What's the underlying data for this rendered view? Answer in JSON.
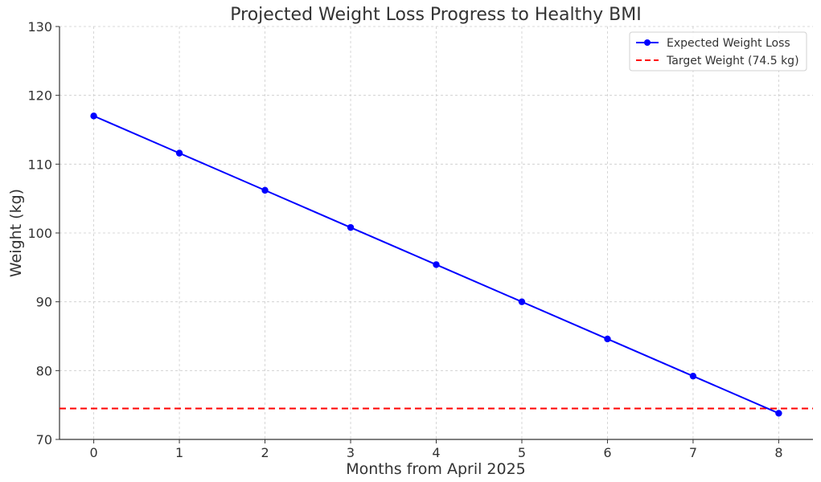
{
  "chart_data": {
    "type": "line",
    "title": "Projected Weight Loss Progress to Healthy BMI",
    "xlabel": "Months from April 2025",
    "ylabel": "Weight (kg)",
    "x": [
      0,
      1,
      2,
      3,
      4,
      5,
      6,
      7,
      8
    ],
    "xlim": [
      -0.4,
      8.4
    ],
    "ylim": [
      70,
      130
    ],
    "xticks": [
      0,
      1,
      2,
      3,
      4,
      5,
      6,
      7,
      8
    ],
    "yticks": [
      70,
      80,
      90,
      100,
      110,
      120,
      130
    ],
    "grid": true,
    "legend_position": "top-right",
    "series": [
      {
        "name": "Expected Weight Loss",
        "values": [
          117.0,
          111.6,
          106.2,
          100.8,
          95.4,
          90.0,
          84.6,
          79.2,
          73.8
        ],
        "color": "#0000ff",
        "style": "solid",
        "marker": "circle"
      }
    ],
    "reference_lines": [
      {
        "name": "Target Weight (74.5 kg)",
        "value": 74.5,
        "color": "#ff0000",
        "style": "dashed"
      }
    ]
  }
}
